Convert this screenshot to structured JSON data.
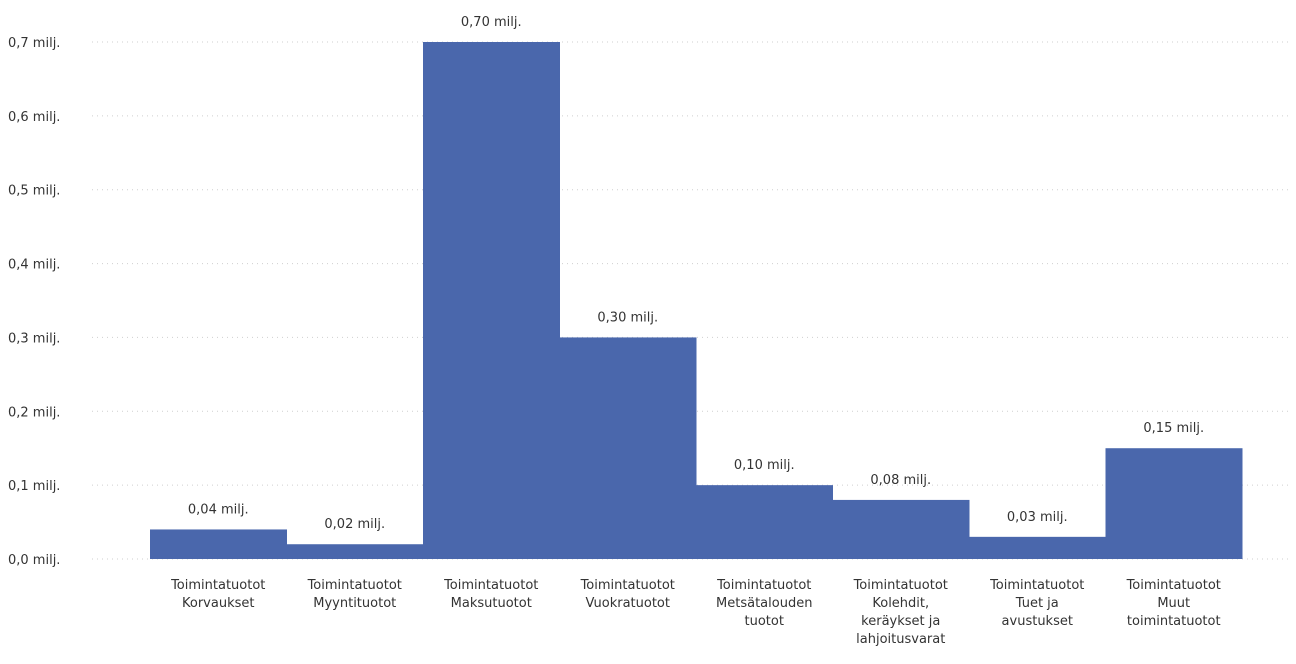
{
  "chart_data": {
    "type": "bar",
    "categories": [
      [
        "Toimintatuotot",
        "Korvaukset"
      ],
      [
        "Toimintatuotot",
        "Myyntituotot"
      ],
      [
        "Toimintatuotot",
        "Maksutuotot"
      ],
      [
        "Toimintatuotot",
        "Vuokratuotot"
      ],
      [
        "Toimintatuotot",
        "Metsätalouden",
        "tuotot"
      ],
      [
        "Toimintatuotot",
        "Kolehdit,",
        "keräykset ja",
        "lahjoitusvarat"
      ],
      [
        "Toimintatuotot",
        "Tuet ja",
        "avustukset"
      ],
      [
        "Toimintatuotot",
        "Muut",
        "toimintatuotot"
      ]
    ],
    "values": [
      0.04,
      0.02,
      0.7,
      0.3,
      0.1,
      0.08,
      0.03,
      0.15
    ],
    "data_labels": [
      "0,04 milj.",
      "0,02 milj.",
      "0,70 milj.",
      "0,30 milj.",
      "0,10 milj.",
      "0,08 milj.",
      "0,03 milj.",
      "0,15 milj."
    ],
    "y_ticks": [
      0,
      0.1,
      0.2,
      0.3,
      0.4,
      0.5,
      0.6,
      0.7
    ],
    "y_tick_labels": [
      "0,0 milj.",
      "0,1 milj.",
      "0,2 milj.",
      "0,3 milj.",
      "0,4 milj.",
      "0,5 milj.",
      "0,6 milj.",
      "0,7 milj."
    ],
    "ylim": [
      0,
      0.7
    ],
    "grid": true,
    "bar_color": "#4a67ac",
    "title": "",
    "xlabel": "",
    "ylabel": ""
  }
}
